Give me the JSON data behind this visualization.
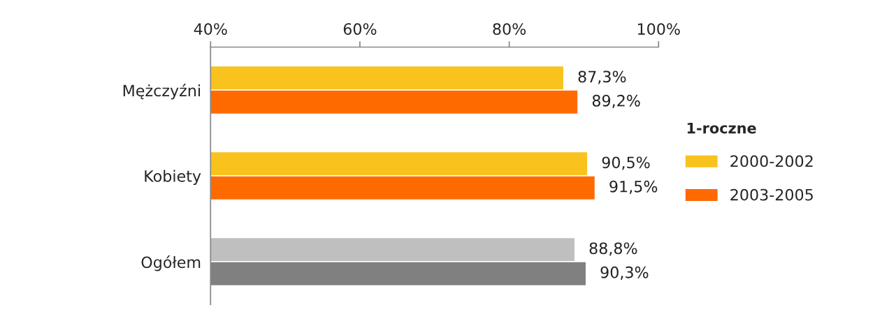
{
  "chart_data": {
    "type": "bar",
    "orientation": "horizontal",
    "categories": [
      "Mężczyźni",
      "Kobiety",
      "Ogółem"
    ],
    "series": [
      {
        "name": "2000-2002",
        "color": "#f9c21d",
        "colors": [
          "#f9c21d",
          "#f9c21d",
          "#bfbfbf"
        ],
        "values": [
          87.3,
          90.5,
          88.8
        ],
        "value_labels": [
          "87,3%",
          "90,5%",
          "88,8%"
        ]
      },
      {
        "name": "2003-2005",
        "color": "#ff6a00",
        "colors": [
          "#ff6a00",
          "#ff6a00",
          "#808080"
        ],
        "values": [
          89.2,
          91.5,
          90.3
        ],
        "value_labels": [
          "89,2%",
          "91,5%",
          "90,3%"
        ]
      }
    ],
    "xlim": [
      40,
      100
    ],
    "xticks": [
      {
        "value": 40,
        "label": "40%"
      },
      {
        "value": 60,
        "label": "60%"
      },
      {
        "value": 80,
        "label": "80%"
      },
      {
        "value": 100,
        "label": "100%"
      }
    ],
    "legend_title": "1-roczne",
    "legend": "right",
    "grid": false
  }
}
